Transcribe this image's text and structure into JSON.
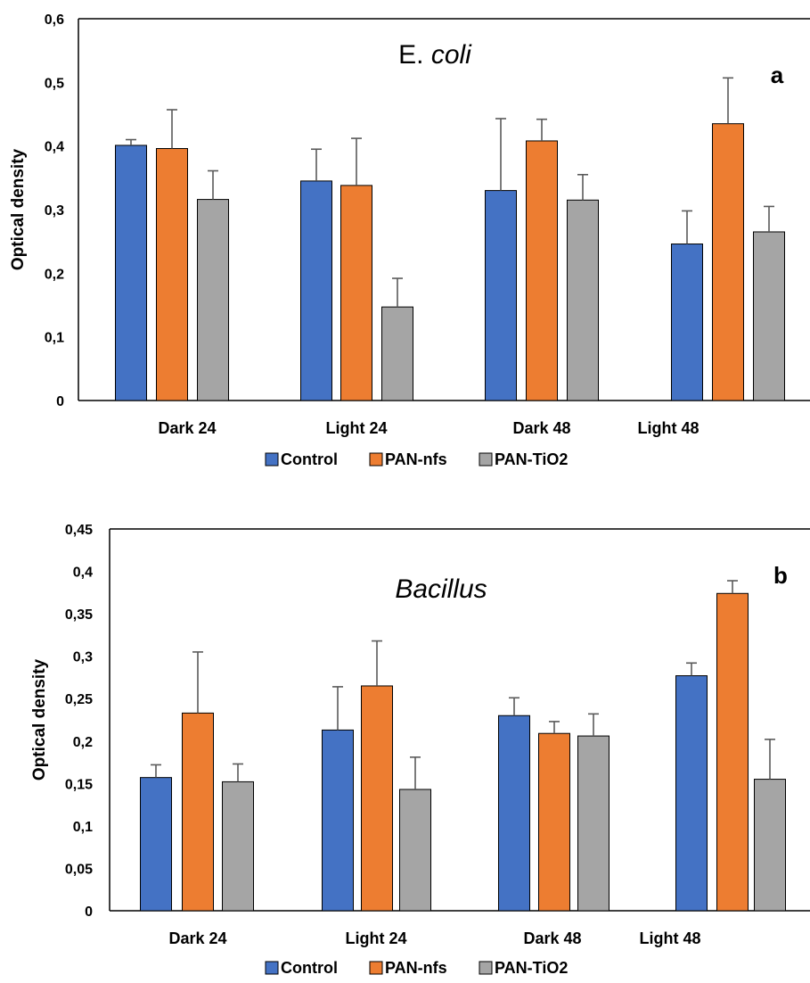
{
  "chart_data": [
    {
      "type": "bar",
      "title_prefix": "E. ",
      "title_italic": "coli",
      "panel_label": "a",
      "ylabel": "Optical density",
      "xlabel": "",
      "ylim": [
        0,
        0.6
      ],
      "yticks": [
        0,
        0.1,
        0.2,
        0.3,
        0.4,
        0.5,
        0.6
      ],
      "ytick_labels": [
        "0",
        "0,1",
        "0,2",
        "0,3",
        "0,4",
        "0,5",
        "0,6"
      ],
      "categories": [
        "Dark 24",
        "Light 24",
        "Dark 48",
        "Light 48"
      ],
      "legend_position": "bottom",
      "grid": false,
      "series": [
        {
          "name": "Control",
          "color": "#4472C4",
          "values": [
            0.401,
            0.345,
            0.33,
            0.246
          ],
          "errors": [
            0.009,
            0.05,
            0.113,
            0.052
          ]
        },
        {
          "name": "PAN-nfs",
          "color": "#ED7D31",
          "values": [
            0.396,
            0.338,
            0.408,
            0.435
          ],
          "errors": [
            0.061,
            0.074,
            0.034,
            0.072
          ]
        },
        {
          "name": "PAN-TiO2",
          "color": "#A5A5A5",
          "values": [
            0.316,
            0.147,
            0.315,
            0.265
          ],
          "errors": [
            0.045,
            0.045,
            0.04,
            0.04
          ]
        }
      ]
    },
    {
      "type": "bar",
      "title_prefix": "",
      "title_italic": "Bacillus",
      "panel_label": "b",
      "ylabel": "Optical density",
      "xlabel": "",
      "ylim": [
        0,
        0.45
      ],
      "yticks": [
        0,
        0.05,
        0.1,
        0.15,
        0.2,
        0.25,
        0.3,
        0.35,
        0.4,
        0.45
      ],
      "ytick_labels": [
        "0",
        "0,05",
        "0,1",
        "0,15",
        "0,2",
        "0,25",
        "0,3",
        "0,35",
        "0,4",
        "0,45"
      ],
      "categories": [
        "Dark 24",
        "Light 24",
        "Dark 48",
        "Light 48"
      ],
      "legend_position": "bottom",
      "grid": false,
      "series": [
        {
          "name": "Control",
          "color": "#4472C4",
          "values": [
            0.157,
            0.213,
            0.23,
            0.277
          ],
          "errors": [
            0.015,
            0.051,
            0.021,
            0.015
          ]
        },
        {
          "name": "PAN-nfs",
          "color": "#ED7D31",
          "values": [
            0.233,
            0.265,
            0.209,
            0.374
          ],
          "errors": [
            0.072,
            0.053,
            0.014,
            0.015
          ]
        },
        {
          "name": "PAN-TiO2",
          "color": "#A5A5A5",
          "values": [
            0.152,
            0.143,
            0.206,
            0.155
          ],
          "errors": [
            0.021,
            0.038,
            0.026,
            0.047
          ]
        }
      ]
    }
  ]
}
